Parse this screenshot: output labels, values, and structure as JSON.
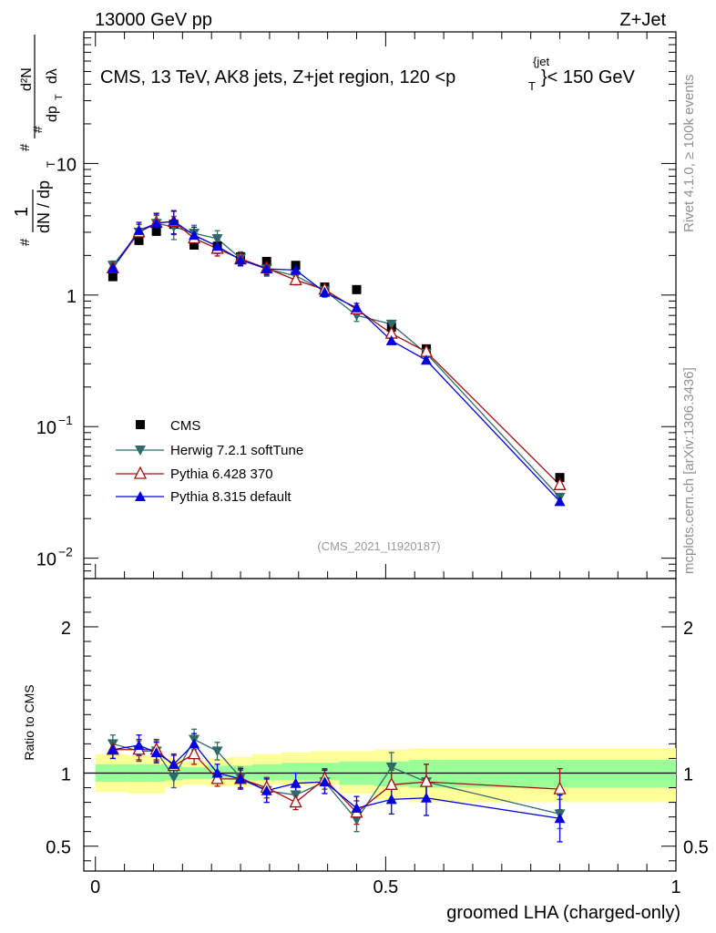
{
  "header": {
    "energy_label": "13000 GeV pp",
    "process_label": "Z+Jet",
    "region_title": "CMS, 13 TeV, AK8 jets, Z+jet region, 120 <p",
    "region_title_sup": "{jet",
    "region_title_sub": "T",
    "region_title_end": "}< 150 GeV",
    "rivet_label": "Rivet 4.1.0, ≥ 100k events",
    "mcplots_label": "mcplots.cern.ch [arXiv:1306.3436]",
    "analysis_id": "(CMS_2021_I1920187)"
  },
  "colors": {
    "cms": "#000000",
    "herwig": "#2e6a6a",
    "pythia6": "#a01010",
    "pythia8": "#0000e0",
    "band_outer": "#ffff99",
    "band_inner": "#99ff99"
  },
  "chart_data": [
    {
      "type": "scatter",
      "panel": "main",
      "yscale": "log",
      "ylabel_parts": [
        "#",
        "1",
        "dN / dp",
        "T",
        "#",
        "d²N",
        "#",
        "dp",
        "T",
        "dλ"
      ],
      "xlim": [
        -0.02,
        1.0
      ],
      "ylim": [
        0.007,
        100
      ],
      "yticks": [
        {
          "value": 0.01,
          "label": "10",
          "exp": "−2"
        },
        {
          "value": 0.1,
          "label": "10",
          "exp": "−1"
        },
        {
          "value": 1,
          "label": "1",
          "exp": ""
        },
        {
          "value": 10,
          "label": "10",
          "exp": ""
        }
      ],
      "x": [
        0.03,
        0.075,
        0.105,
        0.135,
        0.17,
        0.21,
        0.25,
        0.295,
        0.345,
        0.395,
        0.45,
        0.51,
        0.57,
        0.8
      ],
      "series": [
        {
          "name": "CMS",
          "key": "cms",
          "marker": "square",
          "values": [
            1.38,
            2.6,
            3.05,
            3.45,
            2.4,
            2.35,
            1.95,
            1.8,
            1.68,
            1.15,
            1.1,
            0.57,
            0.39,
            0.041
          ]
        },
        {
          "name": "Herwig 7.2.1 softTune",
          "key": "herwig",
          "marker": "triangle-down",
          "values": [
            1.68,
            3.0,
            3.5,
            3.3,
            2.95,
            2.68,
            1.9,
            1.58,
            1.4,
            1.08,
            0.7,
            0.6,
            0.36,
            0.029
          ],
          "errors": [
            0.08,
            0.15,
            0.15,
            0.2,
            0.15,
            0.15,
            0.12,
            0.12,
            0.1,
            0.08,
            0.1,
            0.07,
            0.05,
            0.004
          ]
        },
        {
          "name": "Pythia 6.428 370",
          "key": "pythia6",
          "marker": "triangle-open",
          "values": [
            1.6,
            3.0,
            3.55,
            3.6,
            2.7,
            2.25,
            1.88,
            1.6,
            1.3,
            1.1,
            0.78,
            0.51,
            0.37,
            0.036
          ],
          "errors": [
            0.08,
            0.15,
            0.18,
            0.2,
            0.15,
            0.12,
            0.1,
            0.1,
            0.08,
            0.08,
            0.06,
            0.06,
            0.05,
            0.005
          ]
        },
        {
          "name": "Pythia 8.315 default",
          "key": "pythia8",
          "marker": "triangle-up",
          "values": [
            1.6,
            3.1,
            3.5,
            3.65,
            2.85,
            2.35,
            1.85,
            1.58,
            1.55,
            1.05,
            0.8,
            0.45,
            0.32,
            0.027
          ],
          "errors": [
            0.08,
            0.15,
            0.18,
            0.2,
            0.15,
            0.12,
            0.1,
            0.1,
            0.1,
            0.08,
            0.08,
            0.06,
            0.05,
            0.005
          ]
        }
      ]
    },
    {
      "type": "scatter",
      "panel": "ratio",
      "ylabel": "Ratio to CMS",
      "xlabel": "groomed LHA (charged-only)",
      "xlim": [
        -0.02,
        1.0
      ],
      "ylim": [
        0.33,
        2.33
      ],
      "xticks": [
        {
          "value": 0,
          "label": "0"
        },
        {
          "value": 0.5,
          "label": "0.5"
        },
        {
          "value": 1,
          "label": "1"
        }
      ],
      "yticks": [
        {
          "value": 0.5,
          "label": "0.5"
        },
        {
          "value": 1,
          "label": "1"
        },
        {
          "value": 2,
          "label": "2"
        }
      ],
      "bands": {
        "edges": [
          0,
          0.055,
          0.095,
          0.12,
          0.15,
          0.19,
          0.23,
          0.27,
          0.32,
          0.37,
          0.42,
          0.48,
          0.54,
          0.6,
          1.0
        ],
        "outer_low": [
          0.87,
          0.86,
          0.86,
          0.9,
          0.92,
          0.91,
          0.91,
          0.92,
          0.92,
          0.92,
          0.86,
          0.82,
          0.8,
          0.8
        ],
        "outer_high": [
          1.13,
          1.12,
          1.12,
          1.1,
          1.08,
          1.1,
          1.11,
          1.13,
          1.14,
          1.15,
          1.15,
          1.16,
          1.17,
          1.17
        ],
        "inner_low": [
          0.94,
          0.94,
          0.94,
          0.95,
          0.96,
          0.96,
          0.95,
          0.95,
          0.95,
          0.95,
          0.92,
          0.91,
          0.9,
          0.9
        ],
        "inner_high": [
          1.06,
          1.06,
          1.06,
          1.05,
          1.04,
          1.05,
          1.05,
          1.06,
          1.07,
          1.07,
          1.08,
          1.08,
          1.09,
          1.09
        ]
      },
      "x": [
        0.03,
        0.075,
        0.105,
        0.135,
        0.17,
        0.21,
        0.25,
        0.295,
        0.345,
        0.395,
        0.45,
        0.51,
        0.57,
        0.8
      ],
      "series": [
        {
          "name": "Herwig 7.2.1 softTune",
          "key": "herwig",
          "marker": "triangle-down",
          "values": [
            1.2,
            1.15,
            1.15,
            0.97,
            1.23,
            1.15,
            0.97,
            0.88,
            0.85,
            0.94,
            0.68,
            1.04,
            0.94,
            0.72
          ],
          "errors": [
            0.06,
            0.07,
            0.07,
            0.07,
            0.07,
            0.06,
            0.07,
            0.08,
            0.07,
            0.08,
            0.08,
            0.1,
            0.12,
            0.1
          ]
        },
        {
          "name": "Pythia 6.428 370",
          "key": "pythia6",
          "marker": "triangle-open",
          "values": [
            1.16,
            1.16,
            1.16,
            1.05,
            1.13,
            0.96,
            0.96,
            0.9,
            0.8,
            0.96,
            0.73,
            0.92,
            0.94,
            0.89
          ],
          "errors": [
            0.06,
            0.07,
            0.07,
            0.07,
            0.07,
            0.05,
            0.06,
            0.07,
            0.05,
            0.07,
            0.08,
            0.1,
            0.12,
            0.14
          ]
        },
        {
          "name": "Pythia 8.315 default",
          "key": "pythia8",
          "marker": "triangle-up",
          "values": [
            1.16,
            1.19,
            1.14,
            1.06,
            1.2,
            1.0,
            0.96,
            0.88,
            0.93,
            0.94,
            0.76,
            0.82,
            0.83,
            0.69
          ],
          "errors": [
            0.06,
            0.07,
            0.07,
            0.07,
            0.07,
            0.06,
            0.07,
            0.08,
            0.07,
            0.08,
            0.08,
            0.1,
            0.12,
            0.16
          ]
        }
      ]
    }
  ]
}
